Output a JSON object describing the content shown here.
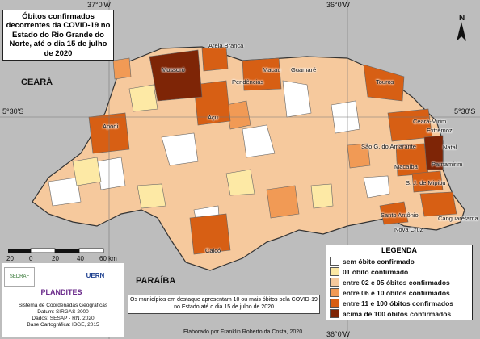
{
  "title": "Óbitos confirmados decorrentes da COVID-19 no Estado do Rio Grande do Norte, até o dia 15 de julho de 2020",
  "grid": {
    "lon_left": "37°0'W",
    "lon_right": "36°0'W",
    "lat": "5°30'S"
  },
  "neighbors": {
    "west": "CEARÁ",
    "south": "PARAÍBA"
  },
  "north_arrow": "N",
  "cities": [
    "Areia Branca",
    "Mossoró",
    "Macau",
    "Guamaré",
    "Pendências",
    "Touros",
    "Apodi",
    "Açu",
    "Ceará-Mirim",
    "Extremoz",
    "Natal",
    "São G. do Amarante",
    "Parnamirim",
    "Macaíba",
    "S. J. de Mipibu",
    "Santo Antônio",
    "Canguaretama",
    "Nova Cruz",
    "Caicó"
  ],
  "legend": {
    "title": "LEGENDA",
    "items": [
      {
        "label": "sem óbito confirmado",
        "color": "#ffffff"
      },
      {
        "label": "01 óbito confirmado",
        "color": "#fde9a5"
      },
      {
        "label": "entre 02 e 05 óbitos confirmados",
        "color": "#f6c99d"
      },
      {
        "label": "entre 06 e 10 óbitos confirmados",
        "color": "#f19a55"
      },
      {
        "label": "entre 11 e 100 óbitos confirmados",
        "color": "#d75f14"
      },
      {
        "label": "acima de 100 óbitos confirmados",
        "color": "#7e2506"
      }
    ]
  },
  "scale": {
    "ticks": [
      "20",
      "0",
      "20",
      "40",
      "60 km"
    ]
  },
  "logos": [
    "SEDRAF",
    "UERN",
    "PLANDITES"
  ],
  "metadata": {
    "line1": "Sistema de Coordenadas Geográficas",
    "line2": "Datum: SIRGAS 2000",
    "line3": "Dados: SESAP - RN, 2020",
    "line4": "Base Cartográfica: IBGE, 2015"
  },
  "note": "Os municípios em destaque apresentam 10 ou mais óbitos pela COVID-19 no Estado até o dia 15 de julho de 2020",
  "credit": "Elaborado por Franklin Roberto da Costa, 2020"
}
